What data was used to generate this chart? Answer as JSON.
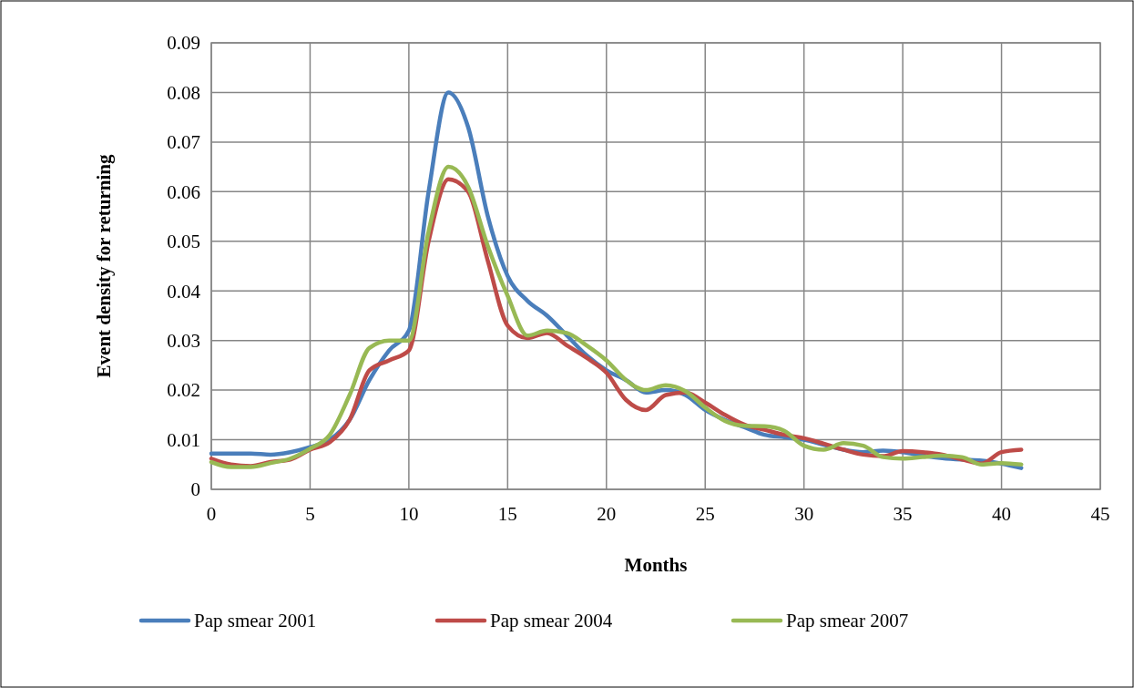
{
  "chart_data": {
    "type": "line",
    "xlabel": "Months",
    "ylabel": "Event density for returning",
    "x": [
      0,
      1,
      2,
      3,
      4,
      5,
      6,
      7,
      8,
      9,
      10,
      11,
      12,
      13,
      14,
      15,
      16,
      17,
      18,
      19,
      20,
      21,
      22,
      23,
      24,
      25,
      26,
      27,
      28,
      29,
      30,
      31,
      32,
      33,
      34,
      35,
      36,
      37,
      38,
      39,
      40,
      41
    ],
    "series": [
      {
        "name": "Pap smear 2001",
        "color": "#4a7ebb",
        "values": [
          0.0072,
          0.0072,
          0.0072,
          0.007,
          0.0075,
          0.0085,
          0.01,
          0.014,
          0.022,
          0.028,
          0.032,
          0.06,
          0.08,
          0.073,
          0.055,
          0.043,
          0.038,
          0.035,
          0.031,
          0.027,
          0.024,
          0.022,
          0.0195,
          0.02,
          0.019,
          0.016,
          0.014,
          0.0125,
          0.011,
          0.0105,
          0.01,
          0.009,
          0.008,
          0.0075,
          0.0078,
          0.0075,
          0.0068,
          0.0063,
          0.006,
          0.0058,
          0.0052,
          0.0043
        ]
      },
      {
        "name": "Pap smear 2004",
        "color": "#be4b48",
        "values": [
          0.0062,
          0.005,
          0.0047,
          0.0055,
          0.006,
          0.008,
          0.0095,
          0.014,
          0.024,
          0.026,
          0.028,
          0.05,
          0.0625,
          0.06,
          0.046,
          0.033,
          0.0305,
          0.0315,
          0.029,
          0.0265,
          0.0235,
          0.018,
          0.016,
          0.019,
          0.0195,
          0.0175,
          0.015,
          0.013,
          0.012,
          0.011,
          0.0103,
          0.0092,
          0.008,
          0.007,
          0.0067,
          0.0077,
          0.0075,
          0.007,
          0.006,
          0.0052,
          0.0075,
          0.008
        ]
      },
      {
        "name": "Pap smear 2007",
        "color": "#98b954",
        "values": [
          0.0055,
          0.0045,
          0.0045,
          0.0053,
          0.0062,
          0.0082,
          0.011,
          0.019,
          0.0285,
          0.03,
          0.03,
          0.052,
          0.065,
          0.061,
          0.049,
          0.039,
          0.031,
          0.032,
          0.0315,
          0.029,
          0.026,
          0.022,
          0.02,
          0.021,
          0.0198,
          0.0165,
          0.0138,
          0.0128,
          0.0127,
          0.0118,
          0.0088,
          0.008,
          0.0093,
          0.0088,
          0.0065,
          0.0062,
          0.0065,
          0.0068,
          0.0065,
          0.005,
          0.0053,
          0.005
        ]
      }
    ],
    "xlim": [
      0,
      45
    ],
    "xticks": [
      0,
      5,
      10,
      15,
      20,
      25,
      30,
      35,
      40,
      45
    ],
    "ylim": [
      0,
      0.09
    ],
    "yticks": [
      0,
      0.01,
      0.02,
      0.03,
      0.04,
      0.05,
      0.06,
      0.07,
      0.08,
      0.09
    ],
    "grid": true,
    "legend": "bottom",
    "line_style": "solid",
    "marker": "none"
  }
}
